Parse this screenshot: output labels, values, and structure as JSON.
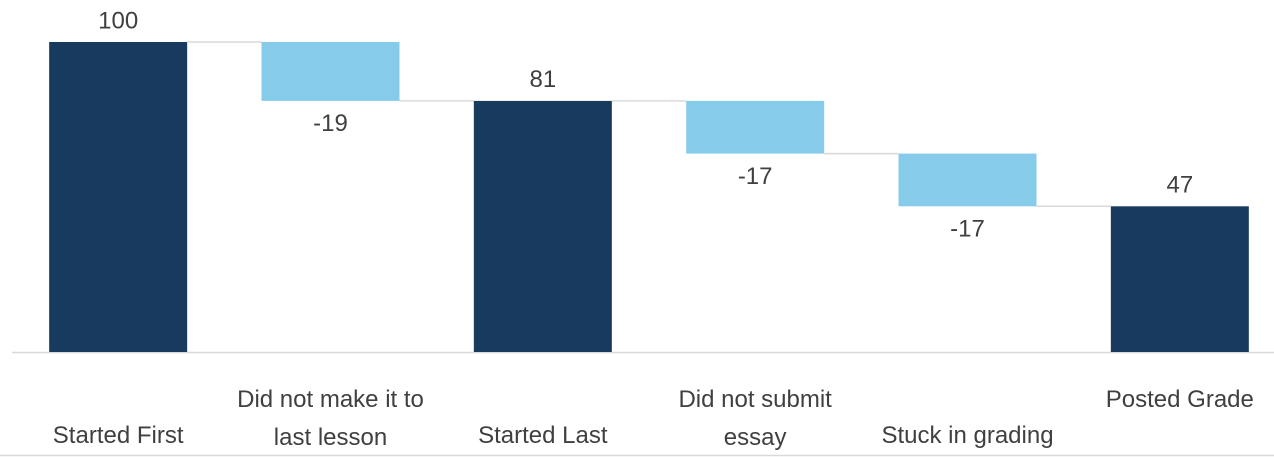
{
  "chart_data": {
    "type": "waterfall",
    "categories": [
      "Started First",
      "Did not make it to last lesson",
      "Started Last",
      "Did not submit essay",
      "Stuck in grading",
      "Posted Grade"
    ],
    "values": [
      100,
      -19,
      81,
      -17,
      -17,
      47
    ],
    "totals": [
      true,
      false,
      true,
      false,
      false,
      true
    ],
    "total_color": "#183a5e",
    "delta_color": "#87cbea",
    "ylim": [
      0,
      100
    ]
  }
}
